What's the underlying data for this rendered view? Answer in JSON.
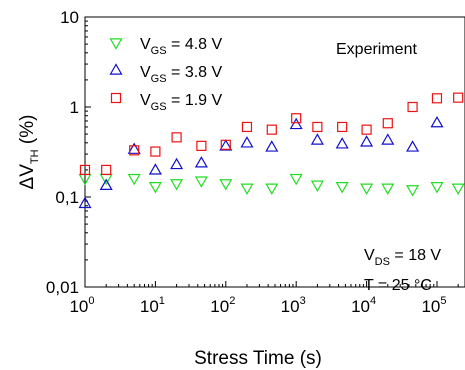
{
  "chart_data": {
    "type": "scatter",
    "x_scale": "log",
    "y_scale": "log",
    "xlim": [
      1,
      250000
    ],
    "ylim": [
      0.01,
      10
    ],
    "xlabel": "Stress Time (s)",
    "ylabel": {
      "main": "ΔV",
      "sub": "TH",
      "suffix": " (%)"
    },
    "x_ticks": [
      {
        "value": 1,
        "base": "10",
        "exp": "0"
      },
      {
        "value": 10,
        "base": "10",
        "exp": "1"
      },
      {
        "value": 100,
        "base": "10",
        "exp": "2"
      },
      {
        "value": 1000,
        "base": "10",
        "exp": "3"
      },
      {
        "value": 10000,
        "base": "10",
        "exp": "4"
      },
      {
        "value": 100000,
        "base": "10",
        "exp": "5"
      }
    ],
    "y_ticks": [
      {
        "value": 0.01,
        "label": "0,01"
      },
      {
        "value": 0.1,
        "label": "0,1"
      },
      {
        "value": 1,
        "label": "1"
      },
      {
        "value": 10,
        "label": "10"
      }
    ],
    "annotation_top": "Experiment",
    "annotation_bottom": [
      {
        "main": "V",
        "sub": "DS",
        "rest": " = 18 V"
      },
      {
        "main": "T = 25 °C",
        "sub": "",
        "rest": ""
      }
    ],
    "series": [
      {
        "label_main": "V",
        "label_sub": "GS",
        "label_rest": " = 4.8 V",
        "marker": "triangle-down",
        "color": "#22dd22",
        "x": [
          1,
          2,
          5,
          10,
          20,
          45,
          100,
          200,
          450,
          1000,
          2000,
          4500,
          10000,
          20000,
          45000,
          100000,
          200000
        ],
        "y": [
          0.16,
          0.16,
          0.16,
          0.13,
          0.14,
          0.15,
          0.14,
          0.125,
          0.125,
          0.16,
          0.135,
          0.13,
          0.125,
          0.125,
          0.12,
          0.13,
          0.125
        ]
      },
      {
        "label_main": "V",
        "label_sub": "GS",
        "label_rest": " = 3.8 V",
        "marker": "triangle-up",
        "color": "#1010cc",
        "x": [
          1,
          2,
          5,
          10,
          20,
          45,
          100,
          200,
          450,
          1000,
          2000,
          4500,
          10000,
          20000,
          45000,
          100000
        ],
        "y": [
          0.085,
          0.135,
          0.34,
          0.2,
          0.23,
          0.24,
          0.37,
          0.4,
          0.36,
          0.64,
          0.43,
          0.39,
          0.41,
          0.43,
          0.36,
          0.67
        ]
      },
      {
        "label_main": "V",
        "label_sub": "GS",
        "label_rest": " = 1.9 V",
        "marker": "square",
        "color": "#ee1111",
        "x": [
          1,
          2,
          5,
          10,
          20,
          45,
          100,
          200,
          450,
          1000,
          2000,
          4500,
          10000,
          20000,
          45000,
          100000,
          200000
        ],
        "y": [
          0.2,
          0.2,
          0.33,
          0.32,
          0.46,
          0.37,
          0.38,
          0.6,
          0.56,
          0.75,
          0.6,
          0.6,
          0.56,
          0.66,
          1.0,
          1.25,
          1.27
        ]
      }
    ]
  }
}
